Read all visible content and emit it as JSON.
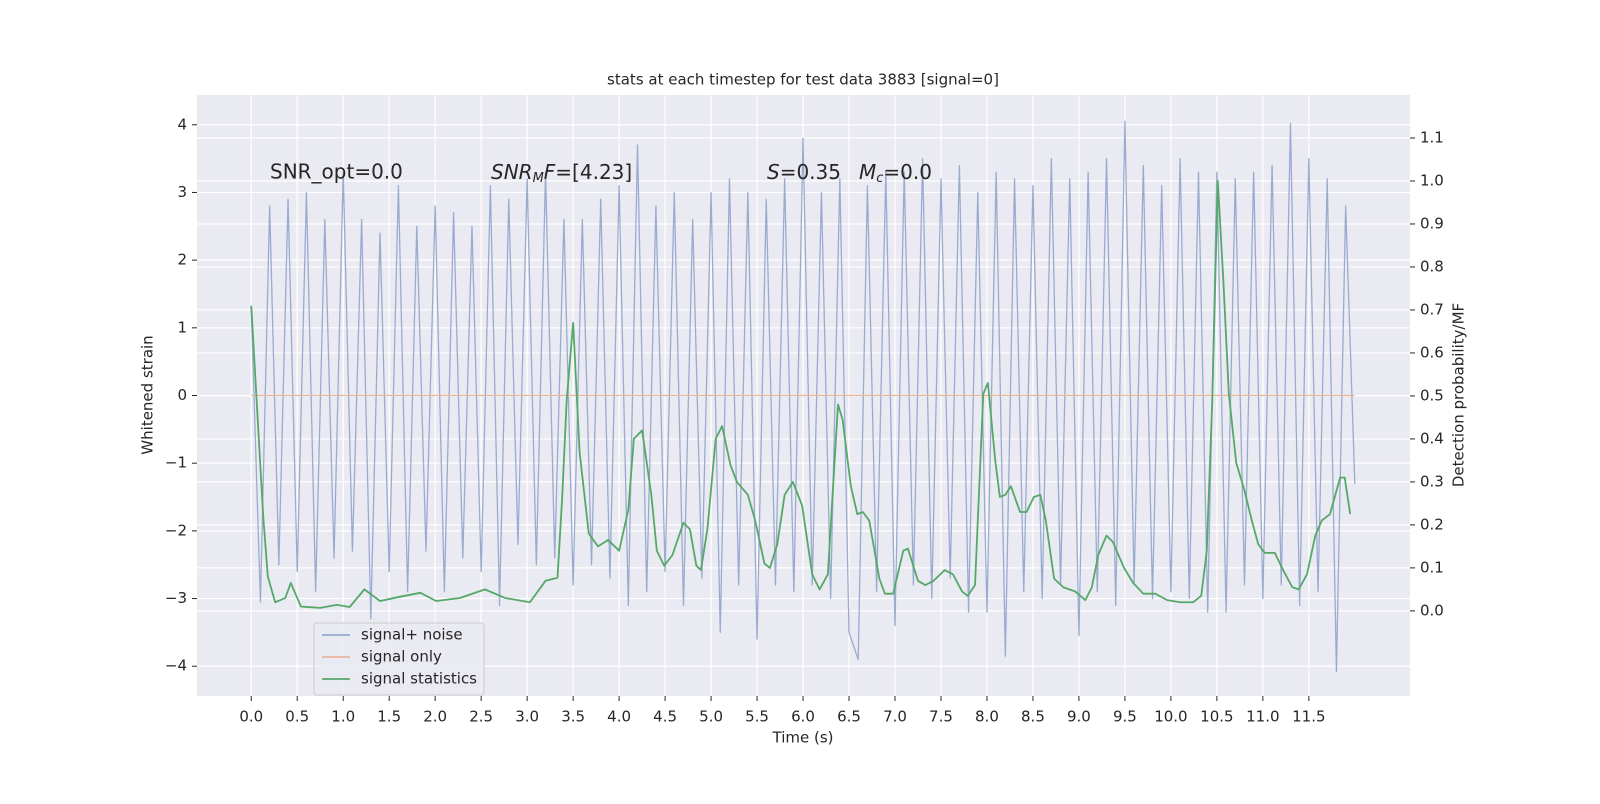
{
  "chart_data": {
    "type": "line",
    "title": "stats at each timestep for test data 3883 [signal=0]",
    "xlabel": "Time (s)",
    "ylabel": "Whitened strain",
    "y2label": "Detection probability/MF",
    "annotations": [
      [
        "SNR_opt=0.0"
      ],
      [
        "SNR",
        "M",
        "F",
        "=[4.23]"
      ],
      [
        "S",
        "=0.35"
      ],
      [
        "M",
        "c",
        "=0.0"
      ]
    ],
    "xlim": [
      -0.59,
      12.6
    ],
    "ylim": [
      -4.44,
      4.44
    ],
    "y2lim": [
      -0.198,
      1.2
    ],
    "xticks": [
      {
        "value": 0,
        "label": "0.0"
      },
      0.5,
      {
        "value": 1,
        "label": "1.0"
      },
      1.5,
      {
        "value": 2,
        "label": "2.0"
      },
      2.5,
      {
        "value": 3,
        "label": "3.0"
      },
      3.5,
      {
        "value": 4,
        "label": "4.0"
      },
      4.5,
      {
        "value": 5,
        "label": "5.0"
      },
      5.5,
      {
        "value": 6,
        "label": "6.0"
      },
      6.5,
      {
        "value": 7,
        "label": "7.0"
      },
      7.5,
      {
        "value": 8,
        "label": "8.0"
      },
      8.5,
      {
        "value": 9,
        "label": "9.0"
      },
      9.5,
      {
        "value": 10,
        "label": "10.0"
      },
      10.5,
      {
        "value": 11,
        "label": "11.0"
      },
      11.5
    ],
    "yticks": [
      {
        "value": -4,
        "label": "−4"
      },
      {
        "value": -3,
        "label": "−3"
      },
      {
        "value": -2,
        "label": "−2"
      },
      {
        "value": -1,
        "label": "−1"
      },
      0,
      1,
      2,
      3,
      4
    ],
    "y2ticks": [
      {
        "value": 0,
        "label": "0.0"
      },
      0.1,
      0.2,
      0.3,
      0.4,
      0.5,
      0.6,
      0.7,
      0.8,
      0.9,
      {
        "value": 1,
        "label": "1.0"
      },
      1.1
    ],
    "grid": true,
    "legend": "lower left",
    "series": [
      {
        "name": "signal+ noise",
        "color": "#9aabd0",
        "x": [
          0,
          0.1,
          0.2,
          0.3,
          0.4,
          0.5,
          0.6,
          0.7,
          0.8,
          0.9,
          1,
          1.1,
          1.2,
          1.3,
          1.4,
          1.5,
          1.6,
          1.7,
          1.8,
          1.9,
          2,
          2.1,
          2.2,
          2.3,
          2.4,
          2.5,
          2.6,
          2.7,
          2.8,
          2.9,
          3,
          3.1,
          3.2,
          3.3,
          3.4,
          3.5,
          3.6,
          3.7,
          3.8,
          3.9,
          4,
          4.1,
          4.2,
          4.3,
          4.4,
          4.5,
          4.6,
          4.7,
          4.8,
          4.9,
          5,
          5.1,
          5.2,
          5.3,
          5.4,
          5.5,
          5.6,
          5.7,
          5.8,
          5.9,
          6,
          6.1,
          6.2,
          6.3,
          6.4,
          6.5,
          6.6,
          6.7,
          6.8,
          6.9,
          7,
          7.1,
          7.2,
          7.3,
          7.4,
          7.5,
          7.6,
          7.7,
          7.8,
          7.9,
          8,
          8.1,
          8.2,
          8.3,
          8.4,
          8.5,
          8.6,
          8.7,
          8.8,
          8.9,
          9,
          9.1,
          9.2,
          9.3,
          9.4,
          9.5,
          9.6,
          9.7,
          9.8,
          9.9,
          10,
          10.1,
          10.2,
          10.3,
          10.4,
          10.5,
          10.6,
          10.7,
          10.8,
          10.9,
          11,
          11.1,
          11.2,
          11.3,
          11.4,
          11.5,
          11.6,
          11.7,
          11.8,
          11.9,
          12
        ],
        "values": [
          1.3,
          -3.05,
          2.8,
          -2.5,
          2.9,
          -2.6,
          3.0,
          -2.9,
          2.6,
          -2.4,
          3.3,
          -2.3,
          2.6,
          -3.3,
          2.4,
          -2.6,
          3.1,
          -2.9,
          2.5,
          -2.3,
          2.8,
          -2.9,
          2.7,
          -2.4,
          2.5,
          -2.6,
          3.1,
          -3.1,
          2.9,
          -2.2,
          3.2,
          -2.5,
          3.3,
          -2.4,
          2.6,
          -2.8,
          2.6,
          -2.5,
          2.9,
          -2.7,
          3.1,
          -3.1,
          3.7,
          -2.9,
          2.8,
          -2.6,
          3.0,
          -3.1,
          2.6,
          -2.7,
          3.0,
          -3.5,
          3.2,
          -2.8,
          3.0,
          -3.6,
          2.9,
          -2.8,
          3.2,
          -2.9,
          3.8,
          -2.8,
          3.0,
          -3.0,
          3.2,
          -3.5,
          -3.9,
          3.1,
          -2.9,
          3.3,
          -3.4,
          3.3,
          -2.8,
          3.5,
          -3.0,
          3.2,
          -2.7,
          3.4,
          -3.2,
          3.0,
          -3.2,
          3.3,
          -3.85,
          3.2,
          -2.9,
          3.1,
          -3.0,
          3.5,
          -2.8,
          3.2,
          -3.55,
          3.3,
          -2.9,
          3.5,
          -3.1,
          4.05,
          -2.8,
          3.4,
          -3.0,
          3.1,
          -2.9,
          3.5,
          -3.0,
          3.3,
          -3.2,
          3.3,
          -3.2,
          3.2,
          -2.8,
          3.3,
          -3.0,
          3.4,
          -2.8,
          4.02,
          -3.1,
          3.5,
          -2.9,
          3.2,
          -4.08,
          2.8,
          -1.3
        ]
      },
      {
        "name": "signal only",
        "color": "#e8b69b",
        "x": [
          0,
          12
        ],
        "values": [
          0,
          0
        ]
      },
      {
        "name": "signal statistics",
        "color": "#55a868",
        "axis": "y2",
        "x": [
          0,
          0.13,
          0.18,
          0.26,
          0.37,
          0.43,
          0.54,
          0.75,
          0.93,
          1.07,
          1.23,
          1.4,
          1.62,
          1.84,
          2.01,
          2.27,
          2.54,
          2.76,
          3.03,
          3.2,
          3.33,
          3.38,
          3.43,
          3.5,
          3.57,
          3.67,
          3.77,
          3.88,
          4.0,
          4.1,
          4.16,
          4.25,
          4.35,
          4.41,
          4.49,
          4.58,
          4.7,
          4.77,
          4.84,
          4.89,
          4.96,
          5.05,
          5.12,
          5.21,
          5.28,
          5.4,
          5.48,
          5.58,
          5.64,
          5.72,
          5.8,
          5.89,
          5.99,
          6.1,
          6.18,
          6.27,
          6.38,
          6.43,
          6.52,
          6.59,
          6.65,
          6.72,
          6.83,
          6.89,
          6.98,
          7.09,
          7.14,
          7.25,
          7.33,
          7.42,
          7.54,
          7.63,
          7.73,
          7.79,
          7.87,
          7.96,
          8.01,
          8.09,
          8.14,
          8.2,
          8.26,
          8.36,
          8.43,
          8.51,
          8.58,
          8.64,
          8.73,
          8.83,
          8.96,
          9.07,
          9.14,
          9.21,
          9.3,
          9.37,
          9.49,
          9.59,
          9.7,
          9.83,
          9.96,
          10.1,
          10.24,
          10.33,
          10.39,
          10.45,
          10.51,
          10.57,
          10.63,
          10.71,
          10.8,
          10.88,
          10.95,
          11.02,
          11.13,
          11.22,
          11.32,
          11.39,
          11.48,
          11.57,
          11.64,
          11.73,
          11.84,
          11.89,
          11.95
        ],
        "values": [
          0.71,
          0.22,
          0.08,
          0.02,
          0.03,
          0.065,
          0.01,
          0.007,
          0.014,
          0.009,
          0.05,
          0.023,
          0.033,
          0.042,
          0.023,
          0.03,
          0.05,
          0.03,
          0.02,
          0.07,
          0.077,
          0.26,
          0.49,
          0.67,
          0.37,
          0.18,
          0.15,
          0.165,
          0.14,
          0.235,
          0.4,
          0.42,
          0.27,
          0.14,
          0.105,
          0.13,
          0.205,
          0.19,
          0.105,
          0.095,
          0.19,
          0.4,
          0.43,
          0.34,
          0.3,
          0.27,
          0.21,
          0.11,
          0.1,
          0.155,
          0.27,
          0.3,
          0.245,
          0.085,
          0.05,
          0.085,
          0.48,
          0.445,
          0.29,
          0.225,
          0.23,
          0.21,
          0.075,
          0.04,
          0.04,
          0.14,
          0.145,
          0.07,
          0.06,
          0.07,
          0.095,
          0.085,
          0.045,
          0.035,
          0.06,
          0.505,
          0.53,
          0.35,
          0.265,
          0.27,
          0.29,
          0.23,
          0.23,
          0.265,
          0.27,
          0.21,
          0.075,
          0.055,
          0.045,
          0.025,
          0.055,
          0.13,
          0.175,
          0.16,
          0.1,
          0.065,
          0.04,
          0.04,
          0.025,
          0.02,
          0.02,
          0.035,
          0.14,
          0.49,
          1.0,
          0.77,
          0.505,
          0.345,
          0.28,
          0.21,
          0.155,
          0.135,
          0.135,
          0.095,
          0.055,
          0.05,
          0.085,
          0.175,
          0.21,
          0.225,
          0.31,
          0.31,
          0.225
        ]
      }
    ]
  }
}
